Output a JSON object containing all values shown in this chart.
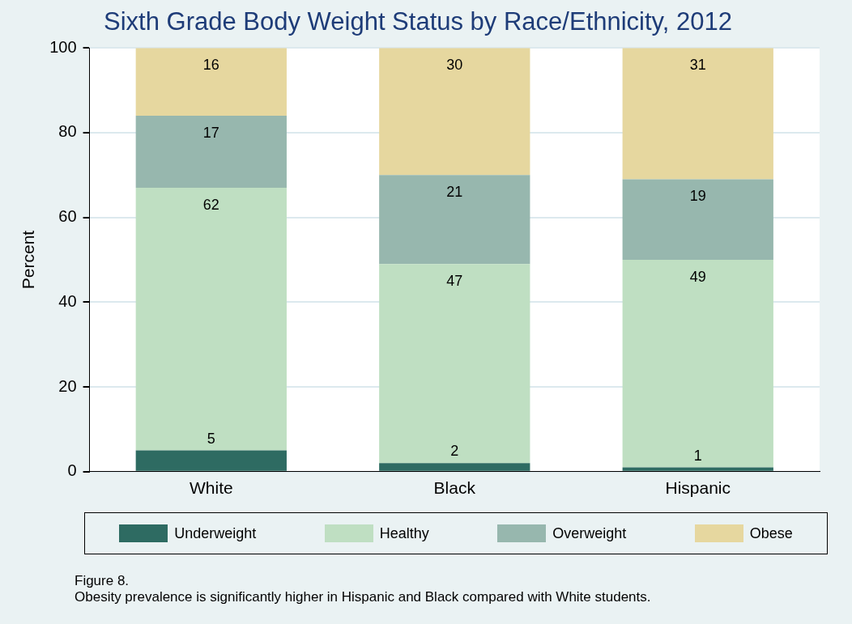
{
  "chart_data": {
    "type": "bar",
    "title": "Sixth Grade Body Weight Status by Race/Ethnicity, 2012",
    "ylabel": "Percent",
    "categories": [
      "White",
      "Black",
      "Hispanic"
    ],
    "stacked": true,
    "series": [
      {
        "name": "Underweight",
        "color": "#2e6b62",
        "values": [
          5,
          2,
          1
        ]
      },
      {
        "name": "Healthy",
        "color": "#bfdfc2",
        "values": [
          62,
          47,
          49
        ]
      },
      {
        "name": "Overweight",
        "color": "#97b7ae",
        "values": [
          17,
          21,
          19
        ]
      },
      {
        "name": "Obese",
        "color": "#e6d79f",
        "values": [
          16,
          30,
          31
        ]
      }
    ],
    "ylim": [
      0,
      100
    ],
    "yticks": [
      0,
      20,
      40,
      60,
      80,
      100
    ],
    "grid": "y",
    "legend": "bottom",
    "data_labels": true,
    "annotations": [
      "Figure 8.",
      "Obesity prevalence is significantly higher in Hispanic and Black compared with White students."
    ]
  }
}
